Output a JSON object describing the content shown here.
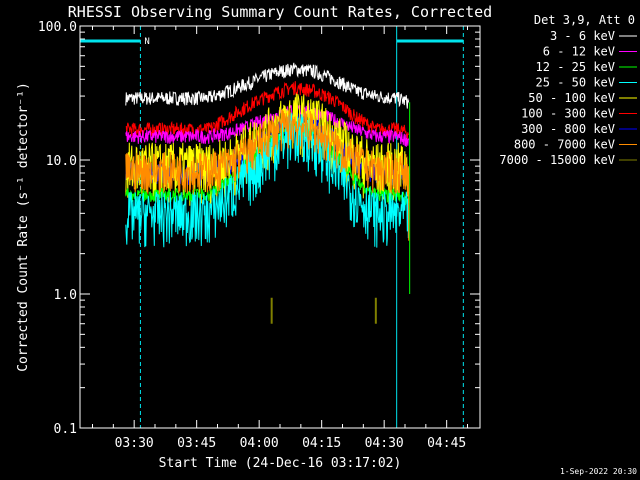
{
  "chart_data": {
    "type": "line",
    "title": "RHESSI Observing Summary Count Rates, Corrected",
    "xlabel": "Start Time (24-Dec-16 03:17:02)",
    "ylabel": "Corrected Count Rate (s⁻¹ detector⁻¹)",
    "yscale": "log",
    "ylim": [
      0.1,
      100
    ],
    "xlim_minutes_after_start": [
      0,
      96
    ],
    "x_tick_labels": [
      "03:30",
      "03:45",
      "04:00",
      "04:15",
      "04:30",
      "04:45"
    ],
    "x_tick_minutes_after_start": [
      13,
      28,
      43,
      58,
      73,
      88
    ],
    "y_tick_labels": [
      "0.1",
      "1.0",
      "10.0",
      "100.0"
    ],
    "y_tick_values": [
      0.1,
      1,
      10,
      100
    ],
    "legend_title": "Det 3,9, Att 0",
    "legend_position": "right",
    "x_minutes": [
      11,
      16,
      21,
      26,
      31,
      36,
      41,
      46,
      51,
      56,
      61,
      66,
      71,
      76,
      79
    ],
    "series": [
      {
        "name": "3 - 6 keV",
        "color": "#ffffff",
        "values": [
          29,
          29,
          29,
          29,
          29,
          33,
          38,
          44,
          48,
          46,
          40,
          33,
          30,
          29,
          27
        ]
      },
      {
        "name": "6 - 12 keV",
        "color": "#ff00ff",
        "values": [
          15,
          15,
          15,
          15,
          15,
          16,
          18,
          21,
          24,
          23,
          20,
          17,
          15,
          15,
          14
        ]
      },
      {
        "name": "12 - 25 keV",
        "color": "#00ff00",
        "values": [
          5.5,
          5.5,
          5.5,
          5.5,
          5.5,
          7,
          10,
          14,
          18,
          16,
          11,
          7,
          5.5,
          5.5,
          5
        ]
      },
      {
        "name": "25 - 50 keV",
        "color": "#00ffff",
        "values": [
          4,
          4,
          4,
          4,
          4,
          5.5,
          8,
          12,
          16,
          14,
          9,
          5.5,
          4,
          4,
          4
        ]
      },
      {
        "name": "50 - 100 keV",
        "color": "#ffff00",
        "values": [
          9,
          9,
          9,
          9,
          9,
          10,
          13,
          17,
          22,
          20,
          15,
          11,
          9,
          9,
          9
        ]
      },
      {
        "name": "100 - 300 keV",
        "color": "#ff0000",
        "values": [
          17,
          17,
          17,
          17,
          17,
          21,
          26,
          31,
          35,
          33,
          28,
          21,
          17,
          17,
          16
        ]
      },
      {
        "name": "300 - 800 keV",
        "color": "#0000ff",
        "values": [
          8,
          8,
          8,
          8,
          8,
          9.5,
          12,
          16,
          20,
          18,
          14,
          10,
          8,
          8,
          8
        ]
      },
      {
        "name": "800 - 7000 keV",
        "color": "#ff8c00",
        "values": [
          8.5,
          8.5,
          8.5,
          8.5,
          8.5,
          9.5,
          12,
          16,
          19,
          17,
          13,
          10,
          8.5,
          8.5,
          8.5
        ]
      },
      {
        "name": "7000 - 15000 keV",
        "color": "#808000",
        "values": [
          null,
          null,
          null,
          null,
          null,
          null,
          null,
          0.75,
          null,
          null,
          null,
          null,
          0.75,
          null,
          null
        ]
      }
    ],
    "attenuator_bars_minutes": [
      [
        0,
        14.5
      ],
      [
        76,
        92
      ]
    ],
    "attenuator_label": "N",
    "vertical_lines_minutes": {
      "solid": [
        0,
        76
      ],
      "dashed": [
        14.5,
        92
      ]
    },
    "footer_date": "1-Sep-2022 20:30"
  }
}
